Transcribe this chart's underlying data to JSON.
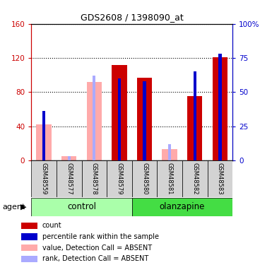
{
  "title": "GDS2608 / 1398090_at",
  "samples": [
    "GSM48559",
    "GSM48577",
    "GSM48578",
    "GSM48579",
    "GSM48580",
    "GSM48581",
    "GSM48582",
    "GSM48583"
  ],
  "groups": [
    "control",
    "control",
    "control",
    "control",
    "olanzapine",
    "olanzapine",
    "olanzapine",
    "olanzapine"
  ],
  "count_values": [
    0,
    0,
    0,
    112,
    97,
    0,
    75,
    121
  ],
  "rank_values": [
    36,
    0,
    0,
    60,
    58,
    0,
    65,
    78
  ],
  "absent_value_values": [
    42,
    5,
    92,
    0,
    0,
    13,
    0,
    0
  ],
  "absent_rank_values": [
    0,
    3,
    62,
    0,
    0,
    12,
    0,
    0
  ],
  "count_color": "#cc0000",
  "rank_color": "#0000cc",
  "absent_value_color": "#ffaaaa",
  "absent_rank_color": "#aaaaff",
  "ylim_left": [
    0,
    160
  ],
  "ylim_right": [
    0,
    100
  ],
  "yticks_left": [
    0,
    40,
    80,
    120,
    160
  ],
  "yticks_right": [
    0,
    25,
    50,
    75,
    100
  ],
  "ytick_labels_left": [
    "0",
    "40",
    "80",
    "120",
    "160"
  ],
  "ytick_labels_right": [
    "0",
    "25",
    "50",
    "75",
    "100%"
  ],
  "left_axis_color": "#cc0000",
  "right_axis_color": "#0000cc",
  "control_label": "control",
  "olanzapine_label": "olanzapine",
  "agent_label": "agent",
  "legend_items": [
    {
      "label": "count",
      "color": "#cc0000"
    },
    {
      "label": "percentile rank within the sample",
      "color": "#0000cc"
    },
    {
      "label": "value, Detection Call = ABSENT",
      "color": "#ffaaaa"
    },
    {
      "label": "rank, Detection Call = ABSENT",
      "color": "#aaaaff"
    }
  ],
  "control_bg": "#aaffaa",
  "olanzapine_bg": "#44dd44",
  "sample_bg": "#d3d3d3",
  "bar_width": 0.6,
  "rank_bar_width": 0.12
}
